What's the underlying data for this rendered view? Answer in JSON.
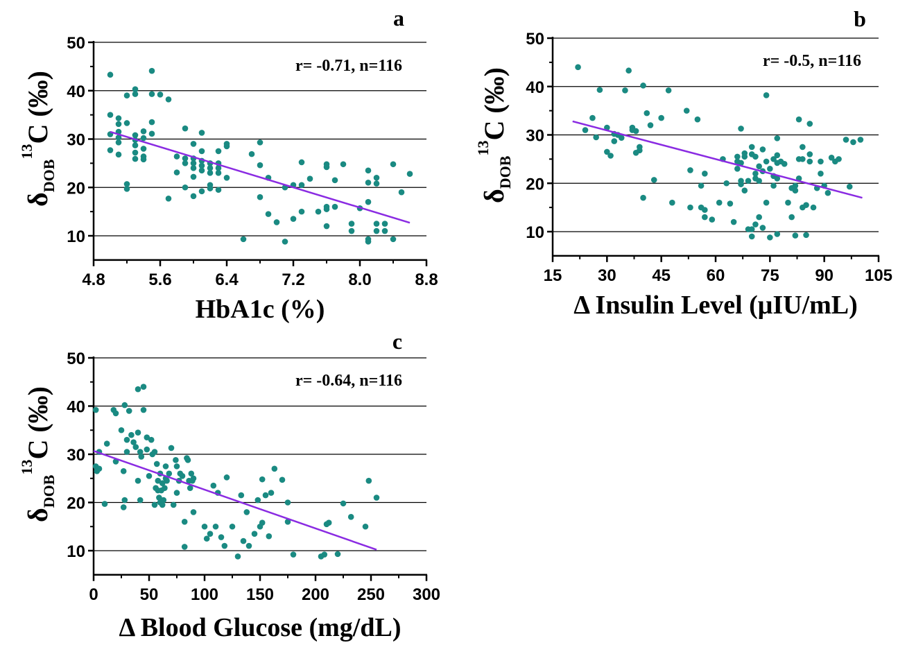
{
  "colors": {
    "points": "#1a8a82",
    "fit": "#8a2be2",
    "axis": "#000000",
    "grid": "#000000"
  },
  "chart_data": [
    {
      "type": "scatter",
      "panel_label": "a",
      "annotation": "r= -0.71, n=116",
      "xlabel": "HbA1c (%)",
      "ylabel": {
        "symbol": "δ",
        "subscript": "DOB",
        "superscript": "13",
        "rest": "C (‰)"
      },
      "xlim": [
        4.8,
        8.8
      ],
      "ylim": [
        5,
        50
      ],
      "xticks": [
        "4.8",
        "5.6",
        "6.4",
        "7.2",
        "8.0",
        "8.8"
      ],
      "xtick_values": [
        4.8,
        5.6,
        6.4,
        7.2,
        8.0,
        8.8
      ],
      "yticks": [
        "10",
        "20",
        "30",
        "40",
        "50"
      ],
      "ytick_values": [
        10,
        20,
        30,
        40,
        50
      ],
      "fit": {
        "x": [
          5.0,
          8.6
        ],
        "y": [
          31.5,
          12.7
        ]
      },
      "points": [
        [
          5.0,
          43.3
        ],
        [
          5.0,
          35.0
        ],
        [
          5.0,
          31.0
        ],
        [
          5.0,
          27.7
        ],
        [
          5.1,
          34.3
        ],
        [
          5.1,
          33.1
        ],
        [
          5.1,
          31.5
        ],
        [
          5.1,
          30.3
        ],
        [
          5.1,
          29.3
        ],
        [
          5.1,
          26.8
        ],
        [
          5.2,
          39.0
        ],
        [
          5.2,
          33.3
        ],
        [
          5.2,
          20.7
        ],
        [
          5.2,
          19.7
        ],
        [
          5.3,
          40.3
        ],
        [
          5.3,
          39.3
        ],
        [
          5.3,
          30.8
        ],
        [
          5.3,
          29.8
        ],
        [
          5.3,
          28.7
        ],
        [
          5.3,
          27.2
        ],
        [
          5.3,
          25.9
        ],
        [
          5.4,
          31.6
        ],
        [
          5.4,
          30.2
        ],
        [
          5.4,
          28.0
        ],
        [
          5.4,
          26.4
        ],
        [
          5.4,
          25.8
        ],
        [
          5.5,
          44.1
        ],
        [
          5.5,
          39.3
        ],
        [
          5.5,
          33.5
        ],
        [
          5.5,
          31.1
        ],
        [
          5.6,
          39.2
        ],
        [
          5.7,
          38.2
        ],
        [
          5.7,
          17.7
        ],
        [
          5.8,
          26.4
        ],
        [
          5.8,
          23.1
        ],
        [
          5.9,
          32.2
        ],
        [
          5.9,
          26.0
        ],
        [
          5.9,
          25.0
        ],
        [
          5.9,
          20.0
        ],
        [
          6.0,
          29.0
        ],
        [
          6.0,
          26.0
        ],
        [
          6.0,
          25.0
        ],
        [
          6.0,
          24.0
        ],
        [
          6.0,
          22.2
        ],
        [
          6.0,
          18.2
        ],
        [
          6.1,
          31.3
        ],
        [
          6.1,
          27.5
        ],
        [
          6.1,
          25.5
        ],
        [
          6.1,
          24.5
        ],
        [
          6.1,
          23.5
        ],
        [
          6.1,
          19.2
        ],
        [
          6.2,
          25.0
        ],
        [
          6.2,
          24.0
        ],
        [
          6.2,
          23.0
        ],
        [
          6.2,
          20.5
        ],
        [
          6.2,
          19.8
        ],
        [
          6.3,
          27.5
        ],
        [
          6.3,
          25.0
        ],
        [
          6.3,
          24.0
        ],
        [
          6.3,
          23.0
        ],
        [
          6.3,
          19.5
        ],
        [
          6.4,
          29.0
        ],
        [
          6.4,
          28.5
        ],
        [
          6.4,
          22.0
        ],
        [
          6.6,
          9.3
        ],
        [
          6.7,
          26.9
        ],
        [
          6.8,
          29.3
        ],
        [
          6.8,
          24.6
        ],
        [
          6.8,
          18.0
        ],
        [
          6.9,
          22.0
        ],
        [
          6.9,
          14.5
        ],
        [
          7.0,
          12.8
        ],
        [
          7.1,
          20.0
        ],
        [
          7.1,
          8.8
        ],
        [
          7.2,
          20.5
        ],
        [
          7.2,
          13.5
        ],
        [
          7.3,
          25.2
        ],
        [
          7.3,
          20.5
        ],
        [
          7.3,
          15.0
        ],
        [
          7.4,
          21.8
        ],
        [
          7.5,
          15.0
        ],
        [
          7.6,
          24.8
        ],
        [
          7.6,
          24.2
        ],
        [
          7.6,
          16.0
        ],
        [
          7.6,
          15.5
        ],
        [
          7.6,
          12.0
        ],
        [
          7.7,
          21.5
        ],
        [
          7.7,
          16.0
        ],
        [
          7.8,
          24.8
        ],
        [
          7.9,
          12.5
        ],
        [
          7.9,
          11.0
        ],
        [
          8.0,
          15.7
        ],
        [
          8.1,
          23.5
        ],
        [
          8.1,
          21.0
        ],
        [
          8.1,
          17.0
        ],
        [
          8.1,
          9.3
        ],
        [
          8.1,
          8.8
        ],
        [
          8.2,
          22.0
        ],
        [
          8.2,
          20.8
        ],
        [
          8.2,
          12.5
        ],
        [
          8.2,
          11.0
        ],
        [
          8.3,
          12.5
        ],
        [
          8.3,
          11.0
        ],
        [
          8.4,
          24.8
        ],
        [
          8.4,
          9.3
        ],
        [
          8.5,
          19.0
        ],
        [
          8.6,
          22.8
        ]
      ]
    },
    {
      "type": "scatter",
      "panel_label": "b",
      "annotation": "r= -0.5, n=116",
      "xlabel": "Δ Insulin Level (μIU/mL)",
      "ylabel": {
        "symbol": "δ",
        "subscript": "DOB",
        "superscript": "13",
        "rest": "C (‰)"
      },
      "xlim": [
        15,
        105
      ],
      "ylim": [
        5,
        50
      ],
      "xticks": [
        "15",
        "30",
        "45",
        "60",
        "75",
        "90",
        "105"
      ],
      "xtick_values": [
        15,
        30,
        45,
        60,
        75,
        90,
        105
      ],
      "yticks": [
        "10",
        "20",
        "30",
        "40",
        "50"
      ],
      "ytick_values": [
        10,
        20,
        30,
        40,
        50
      ],
      "fit": {
        "x": [
          20.5,
          100.5
        ],
        "y": [
          32.8,
          17.0
        ]
      },
      "points": [
        [
          22,
          44.0
        ],
        [
          24,
          31.0
        ],
        [
          26,
          33.5
        ],
        [
          27,
          29.5
        ],
        [
          28,
          39.3
        ],
        [
          30,
          31.5
        ],
        [
          30,
          26.5
        ],
        [
          31,
          25.7
        ],
        [
          32,
          30.2
        ],
        [
          32,
          28.7
        ],
        [
          33,
          30.0
        ],
        [
          34,
          29.4
        ],
        [
          35,
          39.2
        ],
        [
          36,
          43.3
        ],
        [
          37,
          31.5
        ],
        [
          37,
          31.0
        ],
        [
          38,
          26.3
        ],
        [
          38,
          30.8
        ],
        [
          39,
          27.5
        ],
        [
          39,
          26.8
        ],
        [
          40,
          40.2
        ],
        [
          40,
          17.0
        ],
        [
          41,
          34.5
        ],
        [
          42,
          32.0
        ],
        [
          43,
          20.7
        ],
        [
          45,
          33.5
        ],
        [
          47,
          39.2
        ],
        [
          48,
          16.0
        ],
        [
          52,
          35.0
        ],
        [
          53,
          22.7
        ],
        [
          53,
          15.0
        ],
        [
          55,
          33.2
        ],
        [
          56,
          19.5
        ],
        [
          56,
          15.0
        ],
        [
          57,
          22.0
        ],
        [
          57,
          14.5
        ],
        [
          57,
          13.0
        ],
        [
          59,
          12.5
        ],
        [
          61,
          16.0
        ],
        [
          62,
          25.0
        ],
        [
          63,
          20.0
        ],
        [
          64,
          15.8
        ],
        [
          65,
          12.0
        ],
        [
          66,
          25.5
        ],
        [
          66,
          24.5
        ],
        [
          66,
          23.0
        ],
        [
          67,
          31.3
        ],
        [
          67,
          24.2
        ],
        [
          67,
          20.5
        ],
        [
          67,
          19.8
        ],
        [
          68,
          26.2
        ],
        [
          68,
          25.5
        ],
        [
          68,
          18.5
        ],
        [
          69,
          10.5
        ],
        [
          69,
          20.5
        ],
        [
          70,
          27.5
        ],
        [
          70,
          26.0
        ],
        [
          70,
          10.5
        ],
        [
          70,
          9.0
        ],
        [
          71,
          25.5
        ],
        [
          71,
          22.0
        ],
        [
          71,
          21.0
        ],
        [
          71,
          11.5
        ],
        [
          72,
          23.5
        ],
        [
          72,
          20.5
        ],
        [
          72,
          13.0
        ],
        [
          73,
          27.0
        ],
        [
          73,
          22.5
        ],
        [
          73,
          10.8
        ],
        [
          74,
          38.2
        ],
        [
          74,
          24.5
        ],
        [
          74,
          16.0
        ],
        [
          75,
          23.0
        ],
        [
          75,
          8.8
        ],
        [
          76,
          21.5
        ],
        [
          76,
          19.5
        ],
        [
          76,
          25.0
        ],
        [
          77,
          29.3
        ],
        [
          77,
          25.8
        ],
        [
          77,
          24.2
        ],
        [
          77,
          21.0
        ],
        [
          77,
          9.5
        ],
        [
          78,
          24.5
        ],
        [
          79,
          24.0
        ],
        [
          80,
          16.0
        ],
        [
          81,
          19.0
        ],
        [
          81,
          13.0
        ],
        [
          82,
          9.2
        ],
        [
          82,
          18.5
        ],
        [
          82,
          19.5
        ],
        [
          83,
          33.2
        ],
        [
          83,
          25.0
        ],
        [
          83,
          21.0
        ],
        [
          84,
          27.5
        ],
        [
          84,
          25.0
        ],
        [
          84,
          15.0
        ],
        [
          85,
          15.5
        ],
        [
          85,
          9.3
        ],
        [
          86,
          32.3
        ],
        [
          86,
          26.0
        ],
        [
          86,
          24.5
        ],
        [
          87,
          15.0
        ],
        [
          88,
          19.0
        ],
        [
          89,
          22.0
        ],
        [
          89,
          24.5
        ],
        [
          90,
          19.5
        ],
        [
          91,
          18.0
        ],
        [
          92,
          25.3
        ],
        [
          93,
          24.5
        ],
        [
          94,
          25.0
        ],
        [
          96,
          29.0
        ],
        [
          97,
          19.3
        ],
        [
          98,
          28.5
        ],
        [
          100,
          29.0
        ]
      ]
    },
    {
      "type": "scatter",
      "panel_label": "c",
      "annotation": "r= -0.64, n=116",
      "xlabel": "Δ Blood Glucose (mg/dL)",
      "ylabel": {
        "symbol": "δ",
        "subscript": "DOB",
        "superscript": "13",
        "rest": "C (‰)"
      },
      "xlim": [
        0,
        300
      ],
      "ylim": [
        5,
        50
      ],
      "xticks": [
        "0",
        "50",
        "100",
        "150",
        "200",
        "250",
        "300"
      ],
      "xtick_values": [
        0,
        50,
        100,
        150,
        200,
        250,
        300
      ],
      "yticks": [
        "10",
        "20",
        "30",
        "40",
        "50"
      ],
      "ytick_values": [
        10,
        20,
        30,
        40,
        50
      ],
      "fit": {
        "x": [
          0,
          255
        ],
        "y": [
          30.7,
          10.2
        ]
      },
      "points": [
        [
          2,
          39.2
        ],
        [
          2,
          27.5
        ],
        [
          3,
          26.5
        ],
        [
          5,
          30.5
        ],
        [
          5,
          27.0
        ],
        [
          10,
          19.7
        ],
        [
          12,
          32.2
        ],
        [
          18,
          39.2
        ],
        [
          20,
          38.5
        ],
        [
          20,
          28.5
        ],
        [
          25,
          35.0
        ],
        [
          28,
          40.2
        ],
        [
          27,
          26.5
        ],
        [
          28,
          20.5
        ],
        [
          27,
          19.0
        ],
        [
          30,
          33.0
        ],
        [
          30,
          30.5
        ],
        [
          32,
          39.0
        ],
        [
          34,
          34.0
        ],
        [
          36,
          32.5
        ],
        [
          38,
          31.5
        ],
        [
          40,
          43.5
        ],
        [
          40,
          34.5
        ],
        [
          40,
          24.5
        ],
        [
          42,
          30.5
        ],
        [
          42,
          20.5
        ],
        [
          43,
          29.5
        ],
        [
          45,
          44.0
        ],
        [
          45,
          39.2
        ],
        [
          48,
          33.5
        ],
        [
          48,
          31.0
        ],
        [
          50,
          25.5
        ],
        [
          52,
          33.0
        ],
        [
          53,
          30.0
        ],
        [
          55,
          30.5
        ],
        [
          55,
          19.5
        ],
        [
          56,
          23.0
        ],
        [
          57,
          28.0
        ],
        [
          58,
          24.5
        ],
        [
          58,
          22.5
        ],
        [
          59,
          21.0
        ],
        [
          60,
          26.0
        ],
        [
          60,
          20.0
        ],
        [
          61,
          22.5
        ],
        [
          62,
          24.0
        ],
        [
          62,
          19.5
        ],
        [
          63,
          20.5
        ],
        [
          64,
          23.0
        ],
        [
          65,
          27.5
        ],
        [
          65,
          25.0
        ],
        [
          66,
          24.5
        ],
        [
          68,
          26.0
        ],
        [
          70,
          31.3
        ],
        [
          72,
          19.5
        ],
        [
          74,
          28.8
        ],
        [
          75,
          27.5
        ],
        [
          75,
          22.0
        ],
        [
          77,
          24.5
        ],
        [
          78,
          26.0
        ],
        [
          80,
          25.5
        ],
        [
          82,
          16.0
        ],
        [
          82,
          10.8
        ],
        [
          84,
          29.2
        ],
        [
          85,
          28.8
        ],
        [
          86,
          24.5
        ],
        [
          87,
          23.0
        ],
        [
          88,
          26.0
        ],
        [
          89,
          24.5
        ],
        [
          90,
          25.0
        ],
        [
          90,
          18.0
        ],
        [
          100,
          15.0
        ],
        [
          102,
          12.5
        ],
        [
          105,
          13.5
        ],
        [
          108,
          23.5
        ],
        [
          110,
          15.0
        ],
        [
          112,
          22.0
        ],
        [
          115,
          12.8
        ],
        [
          118,
          11.0
        ],
        [
          120,
          25.2
        ],
        [
          125,
          15.0
        ],
        [
          130,
          8.8
        ],
        [
          133,
          21.5
        ],
        [
          135,
          12.0
        ],
        [
          138,
          18.0
        ],
        [
          140,
          11.0
        ],
        [
          145,
          13.5
        ],
        [
          148,
          20.5
        ],
        [
          150,
          15.0
        ],
        [
          152,
          15.8
        ],
        [
          152,
          24.8
        ],
        [
          155,
          21.5
        ],
        [
          158,
          13.0
        ],
        [
          160,
          22.0
        ],
        [
          163,
          27.0
        ],
        [
          170,
          24.7
        ],
        [
          175,
          20.0
        ],
        [
          175,
          16.0
        ],
        [
          180,
          9.2
        ],
        [
          205,
          8.8
        ],
        [
          208,
          9.2
        ],
        [
          210,
          15.5
        ],
        [
          212,
          15.8
        ],
        [
          220,
          9.3
        ],
        [
          225,
          19.8
        ],
        [
          232,
          17.0
        ],
        [
          245,
          15.0
        ],
        [
          248,
          24.5
        ],
        [
          255,
          21.0
        ]
      ]
    }
  ]
}
